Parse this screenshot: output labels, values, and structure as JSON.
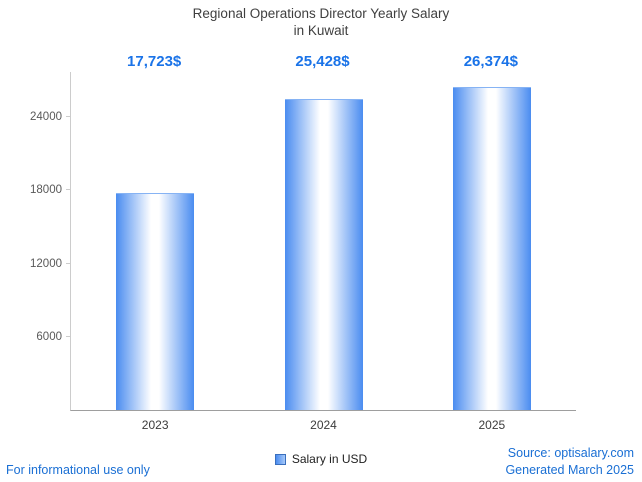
{
  "title": {
    "line1": "Regional Operations Director Yearly Salary",
    "line2": "in Kuwait"
  },
  "chart_data": {
    "type": "bar",
    "title": "Regional Operations Director Yearly Salary in Kuwait",
    "categories": [
      "2023",
      "2024",
      "2025"
    ],
    "values": [
      17723,
      25428,
      26374
    ],
    "value_labels": [
      "17,723$",
      "25,428$",
      "26,374$"
    ],
    "series": [
      {
        "name": "Salary in USD",
        "values": [
          17723,
          25428,
          26374
        ]
      }
    ],
    "yticks": [
      6000,
      12000,
      18000,
      24000
    ],
    "ylim": [
      0,
      27700
    ],
    "xlabel": "",
    "ylabel": "",
    "grid": false,
    "legend_position": "bottom"
  },
  "legend": {
    "label": "Salary in USD"
  },
  "colors": {
    "bar_edge": "#4a8cf0",
    "bar_center": "#ffffff",
    "annotation_blue": "#1a73e8",
    "footer_blue": "#1a6fd4",
    "axis_gray": "#cccccc"
  },
  "footer": {
    "left": "For informational use only",
    "source": "Source: optisalary.com",
    "generated": "Generated March 2025"
  }
}
